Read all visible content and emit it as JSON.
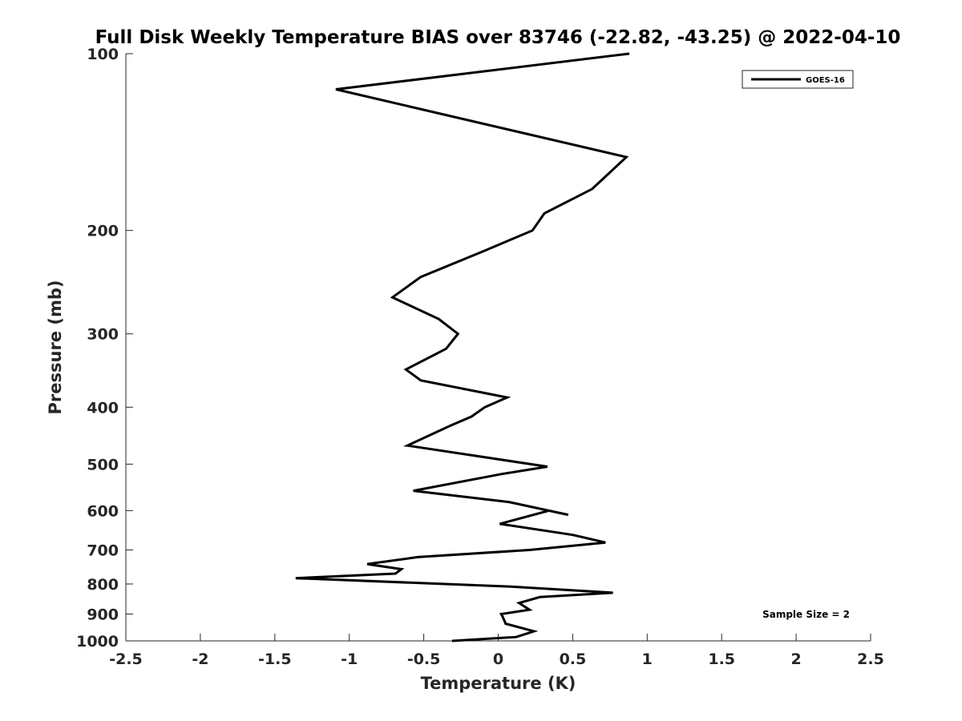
{
  "chart_data": {
    "type": "line",
    "title": "Full Disk Weekly Temperature BIAS over 83746 (-22.82, -43.25) @ 2022-04-10",
    "xlabel": "Temperature (K)",
    "ylabel": "Pressure (mb)",
    "xlim": [
      -2.5,
      2.5
    ],
    "ylim": [
      100,
      1000
    ],
    "y_scale": "log",
    "y_reversed": true,
    "x_ticks": [
      -2.5,
      -2,
      -1.5,
      -1,
      -0.5,
      0,
      0.5,
      1,
      1.5,
      2,
      2.5
    ],
    "x_tick_labels": [
      "-2.5",
      "-2",
      "-1.5",
      "-1",
      "-0.5",
      "0",
      "0.5",
      "1",
      "1.5",
      "2",
      "2.5"
    ],
    "y_ticks": [
      100,
      200,
      300,
      400,
      500,
      600,
      700,
      800,
      900,
      1000
    ],
    "y_tick_labels": [
      "100",
      "200",
      "300",
      "400",
      "500",
      "600",
      "700",
      "800",
      "900",
      "1000"
    ],
    "grid": false,
    "legend_position": "top-right",
    "series": [
      {
        "name": "GOES-16",
        "color": "#000000",
        "x": [
          0.88,
          -1.09,
          0.86,
          0.63,
          0.31,
          0.23,
          -0.1,
          -0.52,
          -0.71,
          -0.4,
          -0.27,
          -0.35,
          -0.62,
          -0.52,
          0.06,
          -0.09,
          -0.18,
          -0.32,
          -0.61,
          0.33,
          0.02,
          -0.57,
          0.07,
          0.47,
          0.34,
          0.01,
          0.5,
          0.72,
          0.21,
          -0.54,
          -0.88,
          -0.65,
          -0.69,
          -1.36,
          0.07,
          0.77,
          0.28,
          0.14,
          0.21,
          0.02,
          0.03,
          0.05,
          0.24,
          0.12,
          -0.31
        ],
        "y": [
          100,
          115,
          150,
          170,
          187,
          200,
          217,
          240,
          260,
          283,
          300,
          318,
          345,
          360,
          385,
          400,
          415,
          430,
          465,
          505,
          520,
          555,
          580,
          610,
          600,
          632,
          660,
          680,
          700,
          720,
          740,
          755,
          768,
          782,
          808,
          828,
          842,
          862,
          885,
          900,
          910,
          935,
          963,
          985,
          1000
        ]
      }
    ],
    "annotations": [
      {
        "text": "Sample Size = 2"
      }
    ]
  }
}
